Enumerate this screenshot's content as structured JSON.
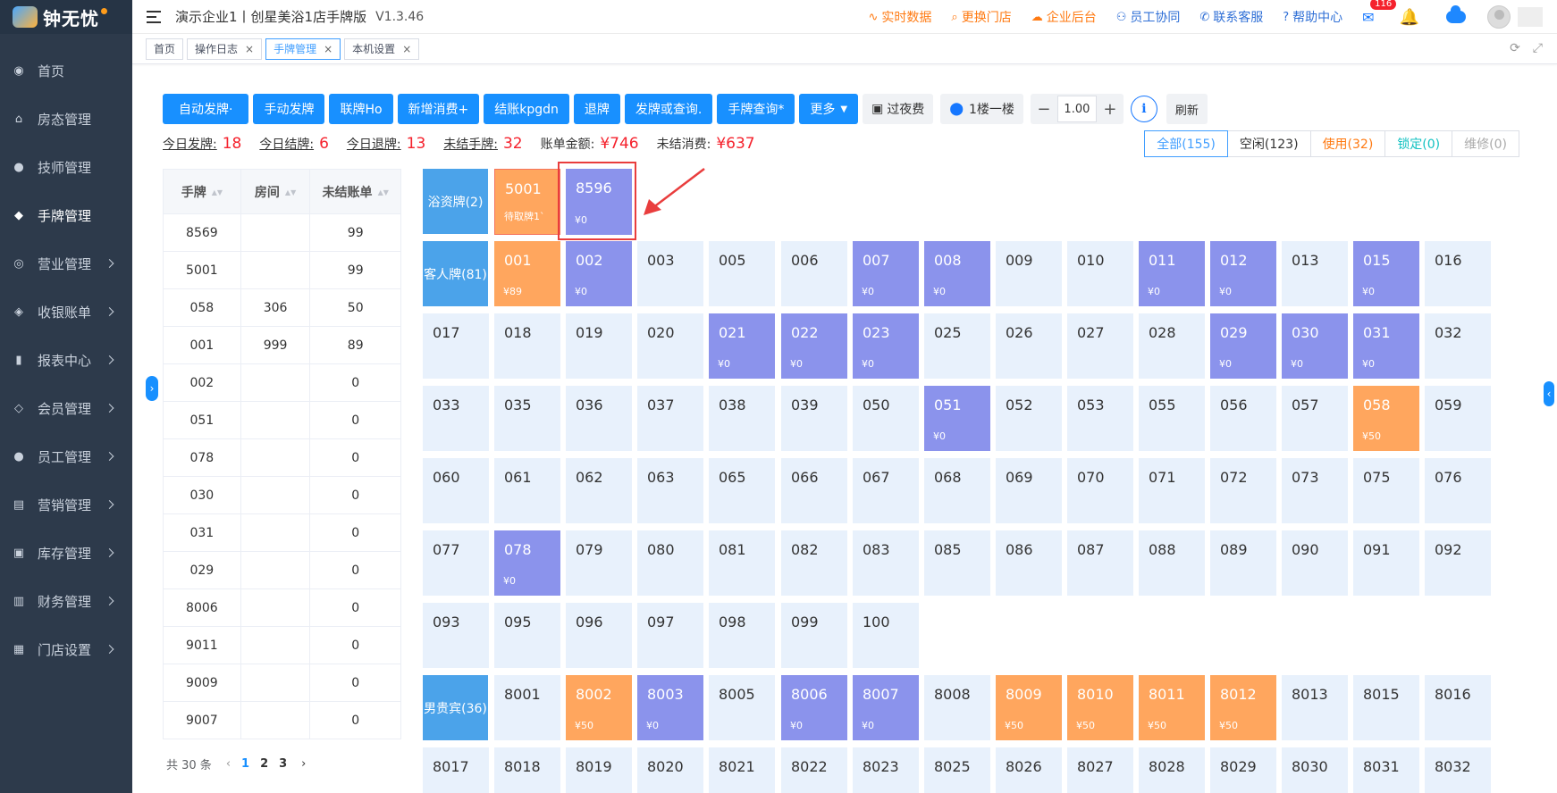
{
  "sidebar": {
    "logo_text": "钟无忧",
    "logo_mark": "钟无忧",
    "items": [
      {
        "label": "首页",
        "icon": "dashboard-icon",
        "glyph": "◉",
        "arrow": false
      },
      {
        "label": "房态管理",
        "icon": "home-icon",
        "glyph": "⌂",
        "arrow": false
      },
      {
        "label": "技师管理",
        "icon": "user-icon",
        "glyph": "●",
        "arrow": false
      },
      {
        "label": "手牌管理",
        "icon": "tag-icon",
        "glyph": "◆",
        "arrow": false,
        "active": true
      },
      {
        "label": "营业管理",
        "icon": "chart-icon",
        "glyph": "◎",
        "arrow": true
      },
      {
        "label": "收银账单",
        "icon": "money-bag-icon",
        "glyph": "◈",
        "arrow": true
      },
      {
        "label": "报表中心",
        "icon": "bar-chart-icon",
        "glyph": "▮",
        "arrow": true
      },
      {
        "label": "会员管理",
        "icon": "diamond-icon",
        "glyph": "◇",
        "arrow": true
      },
      {
        "label": "员工管理",
        "icon": "staff-icon",
        "glyph": "●",
        "arrow": true
      },
      {
        "label": "营销管理",
        "icon": "briefcase-icon",
        "glyph": "▤",
        "arrow": true
      },
      {
        "label": "库存管理",
        "icon": "box-icon",
        "glyph": "▣",
        "arrow": true
      },
      {
        "label": "财务管理",
        "icon": "wallet-icon",
        "glyph": "▥",
        "arrow": true
      },
      {
        "label": "门店设置",
        "icon": "grid-icon",
        "glyph": "▦",
        "arrow": true
      }
    ]
  },
  "header": {
    "title": "演示企业1丨创星美浴1店手牌版",
    "version": "V1.3.46",
    "links": [
      {
        "label": "实时数据",
        "icon": "realtime-icon",
        "glyph": "∿",
        "color": "orange"
      },
      {
        "label": "更换门店",
        "icon": "search-icon",
        "glyph": "⌕",
        "color": "orange"
      },
      {
        "label": "企业后台",
        "icon": "cloud-icon",
        "glyph": "☁",
        "color": "orange"
      },
      {
        "label": "员工协同",
        "icon": "team-icon",
        "glyph": "⚇",
        "color": "blue"
      },
      {
        "label": "联系客服",
        "icon": "phone-icon",
        "glyph": "✆",
        "color": "blue"
      },
      {
        "label": "帮助中心",
        "icon": "help-icon",
        "glyph": "?",
        "color": "blue"
      }
    ],
    "mail_badge": "116"
  },
  "tabs": [
    {
      "label": "首页",
      "closable": false
    },
    {
      "label": "操作日志",
      "closable": true
    },
    {
      "label": "手牌管理",
      "closable": true,
      "active": true
    },
    {
      "label": "本机设置",
      "closable": true
    }
  ],
  "toolbar": {
    "buttons": [
      "自动发牌·",
      "手动发牌",
      "联牌Ho",
      "新增消费+",
      "结账kpgdn",
      "退牌",
      "发牌或查询.",
      "手牌查询*",
      "更多"
    ],
    "overnight_label": "过夜费",
    "floor_label": "1楼一楼",
    "stepper_value": "1.00",
    "refresh_label": "刷新"
  },
  "stats": [
    {
      "label": "今日发牌:",
      "value": "18",
      "underline": true
    },
    {
      "label": "今日结牌:",
      "value": "6",
      "underline": true
    },
    {
      "label": "今日退牌:",
      "value": "13",
      "underline": true
    },
    {
      "label": "未结手牌:",
      "value": "32",
      "underline": true
    },
    {
      "label": "账单金额:",
      "value": "¥746",
      "underline": false
    },
    {
      "label": "未结消费:",
      "value": "¥637",
      "underline": false
    }
  ],
  "filters": [
    {
      "label": "全部(155)",
      "style": "active"
    },
    {
      "label": "空闲(123)",
      "style": "normal"
    },
    {
      "label": "使用(32)",
      "style": "orange"
    },
    {
      "label": "锁定(0)",
      "style": "teal"
    },
    {
      "label": "维修(0)",
      "style": "grey"
    }
  ],
  "table": {
    "headers": [
      "手牌",
      "房间",
      "未结账单"
    ],
    "rows": [
      [
        "8569",
        "",
        "99"
      ],
      [
        "5001",
        "",
        "99"
      ],
      [
        "058",
        "306",
        "50"
      ],
      [
        "001",
        "999",
        "89"
      ],
      [
        "002",
        "",
        "0"
      ],
      [
        "051",
        "",
        "0"
      ],
      [
        "078",
        "",
        "0"
      ],
      [
        "030",
        "",
        "0"
      ],
      [
        "031",
        "",
        "0"
      ],
      [
        "029",
        "",
        "0"
      ],
      [
        "8006",
        "",
        "0"
      ],
      [
        "9011",
        "",
        "0"
      ],
      [
        "9009",
        "",
        "0"
      ],
      [
        "9007",
        "",
        "0"
      ]
    ]
  },
  "pager": {
    "total": "共 30 条",
    "pages": [
      "1",
      "2",
      "3"
    ],
    "current": "1"
  },
  "grid": {
    "rows": [
      {
        "group": "浴资牌(2)",
        "cells": [
          {
            "n": "5001",
            "s": "amber",
            "sub": "待取牌1`"
          },
          {
            "n": "8596",
            "s": "used",
            "amt": "¥0"
          }
        ]
      },
      {
        "group": "客人牌(81)",
        "cells": [
          {
            "n": "001",
            "s": "amber",
            "amt": "¥89"
          },
          {
            "n": "002",
            "s": "used",
            "amt": "¥0"
          },
          {
            "n": "003"
          },
          {
            "n": "005"
          },
          {
            "n": "006"
          },
          {
            "n": "007",
            "s": "used",
            "amt": "¥0"
          },
          {
            "n": "008",
            "s": "used",
            "amt": "¥0"
          },
          {
            "n": "009"
          },
          {
            "n": "010"
          },
          {
            "n": "011",
            "s": "used",
            "amt": "¥0"
          },
          {
            "n": "012",
            "s": "used",
            "amt": "¥0"
          },
          {
            "n": "013"
          },
          {
            "n": "015",
            "s": "used",
            "amt": "¥0"
          },
          {
            "n": "016"
          }
        ]
      },
      {
        "group": "",
        "cells": [
          {
            "n": "017"
          },
          {
            "n": "018"
          },
          {
            "n": "019"
          },
          {
            "n": "020"
          },
          {
            "n": "021",
            "s": "used",
            "amt": "¥0"
          },
          {
            "n": "022",
            "s": "used",
            "amt": "¥0"
          },
          {
            "n": "023",
            "s": "used",
            "amt": "¥0"
          },
          {
            "n": "025"
          },
          {
            "n": "026"
          },
          {
            "n": "027"
          },
          {
            "n": "028"
          },
          {
            "n": "029",
            "s": "used",
            "amt": "¥0"
          },
          {
            "n": "030",
            "s": "used",
            "amt": "¥0"
          },
          {
            "n": "031",
            "s": "used",
            "amt": "¥0"
          },
          {
            "n": "032"
          }
        ]
      },
      {
        "group": "",
        "cells": [
          {
            "n": "033"
          },
          {
            "n": "035"
          },
          {
            "n": "036"
          },
          {
            "n": "037"
          },
          {
            "n": "038"
          },
          {
            "n": "039"
          },
          {
            "n": "050"
          },
          {
            "n": "051",
            "s": "used",
            "amt": "¥0"
          },
          {
            "n": "052"
          },
          {
            "n": "053"
          },
          {
            "n": "055"
          },
          {
            "n": "056"
          },
          {
            "n": "057"
          },
          {
            "n": "058",
            "s": "amber",
            "amt": "¥50"
          },
          {
            "n": "059"
          }
        ]
      },
      {
        "group": "",
        "cells": [
          {
            "n": "060"
          },
          {
            "n": "061"
          },
          {
            "n": "062"
          },
          {
            "n": "063"
          },
          {
            "n": "065"
          },
          {
            "n": "066"
          },
          {
            "n": "067"
          },
          {
            "n": "068"
          },
          {
            "n": "069"
          },
          {
            "n": "070"
          },
          {
            "n": "071"
          },
          {
            "n": "072"
          },
          {
            "n": "073"
          },
          {
            "n": "075"
          },
          {
            "n": "076"
          }
        ]
      },
      {
        "group": "",
        "cells": [
          {
            "n": "077"
          },
          {
            "n": "078",
            "s": "used",
            "amt": "¥0"
          },
          {
            "n": "079"
          },
          {
            "n": "080"
          },
          {
            "n": "081"
          },
          {
            "n": "082"
          },
          {
            "n": "083"
          },
          {
            "n": "085"
          },
          {
            "n": "086"
          },
          {
            "n": "087"
          },
          {
            "n": "088"
          },
          {
            "n": "089"
          },
          {
            "n": "090"
          },
          {
            "n": "091"
          },
          {
            "n": "092"
          }
        ]
      },
      {
        "group": "",
        "cells": [
          {
            "n": "093"
          },
          {
            "n": "095"
          },
          {
            "n": "096"
          },
          {
            "n": "097"
          },
          {
            "n": "098"
          },
          {
            "n": "099"
          },
          {
            "n": "100"
          }
        ]
      },
      {
        "group": "男贵宾(36)",
        "cells": [
          {
            "n": "8001"
          },
          {
            "n": "8002",
            "s": "amber",
            "amt": "¥50"
          },
          {
            "n": "8003",
            "s": "used",
            "amt": "¥0"
          },
          {
            "n": "8005"
          },
          {
            "n": "8006",
            "s": "used",
            "amt": "¥0"
          },
          {
            "n": "8007",
            "s": "used",
            "amt": "¥0"
          },
          {
            "n": "8008"
          },
          {
            "n": "8009",
            "s": "amber",
            "amt": "¥50"
          },
          {
            "n": "8010",
            "s": "amber",
            "amt": "¥50"
          },
          {
            "n": "8011",
            "s": "amber",
            "amt": "¥50"
          },
          {
            "n": "8012",
            "s": "amber",
            "amt": "¥50"
          },
          {
            "n": "8013"
          },
          {
            "n": "8015"
          },
          {
            "n": "8016"
          }
        ]
      },
      {
        "group": "",
        "cells": [
          {
            "n": "8017"
          },
          {
            "n": "8018"
          },
          {
            "n": "8019"
          },
          {
            "n": "8020"
          },
          {
            "n": "8021"
          },
          {
            "n": "8022"
          },
          {
            "n": "8023"
          },
          {
            "n": "8025"
          },
          {
            "n": "8026"
          },
          {
            "n": "8027"
          },
          {
            "n": "8028"
          },
          {
            "n": "8029"
          },
          {
            "n": "8030"
          },
          {
            "n": "8031"
          },
          {
            "n": "8032"
          }
        ]
      }
    ]
  },
  "colors": {
    "primary": "#1890ff",
    "used": "#8b93ec",
    "amber": "#ffa65e",
    "free": "#e8f1fc",
    "group": "#4ba3ea",
    "sidebar": "#2d3a4b",
    "stat_value": "#f5222d",
    "annotation": "#e93d3d"
  }
}
